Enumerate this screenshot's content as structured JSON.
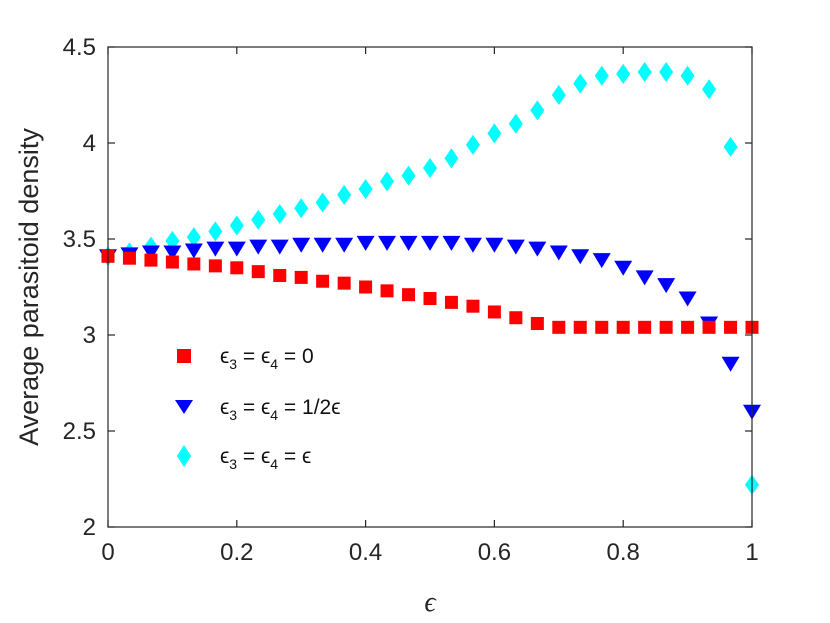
{
  "chart_data": {
    "type": "scatter",
    "title": "",
    "xlabel": "ϵ",
    "ylabel": "Average parasitoid density",
    "xlim": [
      0,
      1
    ],
    "ylim": [
      2,
      4.5
    ],
    "xticks": [
      0,
      0.2,
      0.4,
      0.6,
      0.8,
      1
    ],
    "xtick_labels": [
      "0",
      "0.2",
      "0.4",
      "0.6",
      "0.8",
      "1"
    ],
    "yticks": [
      2,
      2.5,
      3,
      3.5,
      4,
      4.5
    ],
    "ytick_labels": [
      "2",
      "2.5",
      "3",
      "3.5",
      "4",
      "4.5"
    ],
    "grid": false,
    "legend_position": "lower-left",
    "x": [
      0,
      0.0333,
      0.0667,
      0.1,
      0.1333,
      0.1667,
      0.2,
      0.2333,
      0.2667,
      0.3,
      0.3333,
      0.3667,
      0.4,
      0.4333,
      0.4667,
      0.5,
      0.5333,
      0.5667,
      0.6,
      0.6333,
      0.6667,
      0.7,
      0.7333,
      0.7667,
      0.8,
      0.8333,
      0.8667,
      0.9,
      0.9333,
      0.9667,
      1
    ],
    "series": [
      {
        "name": "ϵ3 = ϵ4 = 0",
        "marker": "square",
        "color": "#ff0000",
        "values": [
          3.41,
          3.4,
          3.39,
          3.38,
          3.37,
          3.36,
          3.35,
          3.33,
          3.31,
          3.3,
          3.28,
          3.27,
          3.25,
          3.23,
          3.21,
          3.19,
          3.17,
          3.15,
          3.12,
          3.09,
          3.06,
          3.04,
          3.04,
          3.04,
          3.04,
          3.04,
          3.04,
          3.04,
          3.04,
          3.04,
          3.04
        ]
      },
      {
        "name": "ϵ3 = ϵ4 = 1/2ϵ",
        "marker": "triangle-down",
        "color": "#0000ff",
        "values": [
          3.41,
          3.42,
          3.43,
          3.43,
          3.44,
          3.45,
          3.45,
          3.46,
          3.46,
          3.47,
          3.47,
          3.47,
          3.48,
          3.48,
          3.48,
          3.48,
          3.48,
          3.47,
          3.47,
          3.46,
          3.45,
          3.43,
          3.41,
          3.39,
          3.35,
          3.3,
          3.26,
          3.19,
          3.06,
          2.85,
          2.6
        ]
      },
      {
        "name": "ϵ3 = ϵ4 = ϵ",
        "marker": "diamond",
        "color": "#00ffff",
        "values": [
          3.41,
          3.43,
          3.46,
          3.49,
          3.51,
          3.54,
          3.57,
          3.6,
          3.63,
          3.66,
          3.69,
          3.73,
          3.76,
          3.8,
          3.83,
          3.87,
          3.92,
          3.99,
          4.05,
          4.1,
          4.17,
          4.25,
          4.31,
          4.35,
          4.36,
          4.37,
          4.37,
          4.35,
          4.28,
          3.98,
          2.22
        ]
      }
    ],
    "legend": [
      {
        "prefix": "ϵ",
        "sub1": "3",
        "mid": " = ϵ",
        "sub2": "4",
        "suffix": " = 0"
      },
      {
        "prefix": "ϵ",
        "sub1": "3",
        "mid": " = ϵ",
        "sub2": "4",
        "suffix": " = 1/2ϵ"
      },
      {
        "prefix": "ϵ",
        "sub1": "3",
        "mid": " = ϵ",
        "sub2": "4",
        "suffix": " = ϵ"
      }
    ]
  }
}
